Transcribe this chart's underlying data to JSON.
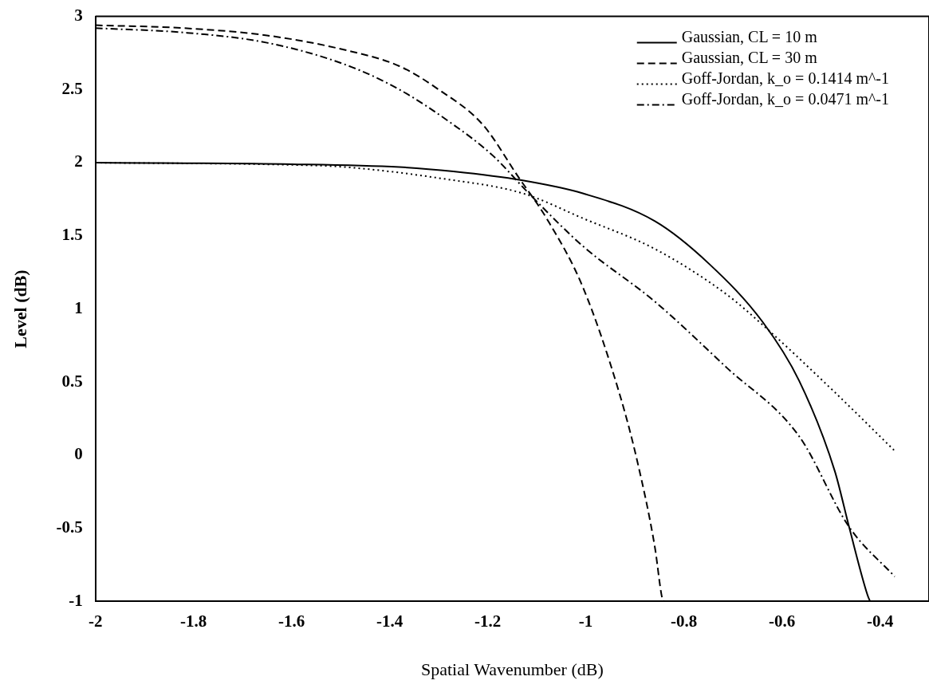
{
  "chart_data": {
    "type": "line",
    "xlabel": "Spatial Wavenumber (dB)",
    "ylabel": "Level (dB)",
    "xlim": [
      -2,
      -0.3
    ],
    "xticks": [
      -2,
      -1.8,
      -1.6,
      -1.4,
      -1.2,
      -1,
      -0.8,
      -0.6,
      -0.4
    ],
    "ylim": [
      -1,
      3
    ],
    "yticks": [
      -1,
      -0.5,
      0,
      0.5,
      1,
      1.5,
      2,
      2.5,
      3
    ],
    "grid": false,
    "legend": "top right",
    "marker": "none",
    "series": [
      {
        "name": "Gaussian, CL = 10 m",
        "color": "#000000",
        "line_style": "solid",
        "x": [
          -2,
          -1.6,
          -1.38,
          -1.27,
          -1.131,
          -1.006,
          -0.859,
          -0.749,
          -0.639,
          -0.565,
          -0.492,
          -0.463,
          -0.425,
          -0.42
        ],
        "values": [
          2,
          1.99,
          1.97,
          1.94,
          1.88,
          1.79,
          1.6,
          1.31,
          0.91,
          0.51,
          -0.11,
          -0.49,
          -0.96,
          -1
        ]
      },
      {
        "name": "Gaussian, CL = 30 m",
        "color": "#000000",
        "line_style": "dashed",
        "x": [
          -2,
          -1.82,
          -1.65,
          -1.49,
          -1.38,
          -1.3,
          -1.21,
          -1.137,
          -1.08,
          -1.006,
          -0.932,
          -0.895,
          -0.859,
          -0.844,
          -0.84
        ],
        "values": [
          2.94,
          2.92,
          2.87,
          2.77,
          2.66,
          2.5,
          2.26,
          1.9,
          1.62,
          1.15,
          0.43,
          -0.04,
          -0.63,
          -0.98,
          -1
        ]
      },
      {
        "name": "Goff-Jordan, k_o = 0.1414 m^-1",
        "color": "#000000",
        "line_style": "dotted",
        "x": [
          -2,
          -1.6,
          -1.49,
          -1.29,
          -1.128,
          -1.006,
          -0.859,
          -0.713,
          -0.639,
          -0.492,
          -0.37
        ],
        "values": [
          2,
          1.985,
          1.97,
          1.89,
          1.79,
          1.62,
          1.41,
          1.1,
          0.89,
          0.43,
          0.03
        ]
      },
      {
        "name": "Goff-Jordan, k_o = 0.0471 m^-1",
        "color": "#000000",
        "line_style": "dashdot",
        "x": [
          -2,
          -1.82,
          -1.65,
          -1.49,
          -1.38,
          -1.27,
          -1.19,
          -1.116,
          -1.006,
          -0.859,
          -0.713,
          -0.565,
          -0.463,
          -0.37
        ],
        "values": [
          2.92,
          2.89,
          2.82,
          2.67,
          2.5,
          2.26,
          2.05,
          1.79,
          1.43,
          1.05,
          0.6,
          0.13,
          -0.49,
          -0.83
        ]
      }
    ]
  }
}
